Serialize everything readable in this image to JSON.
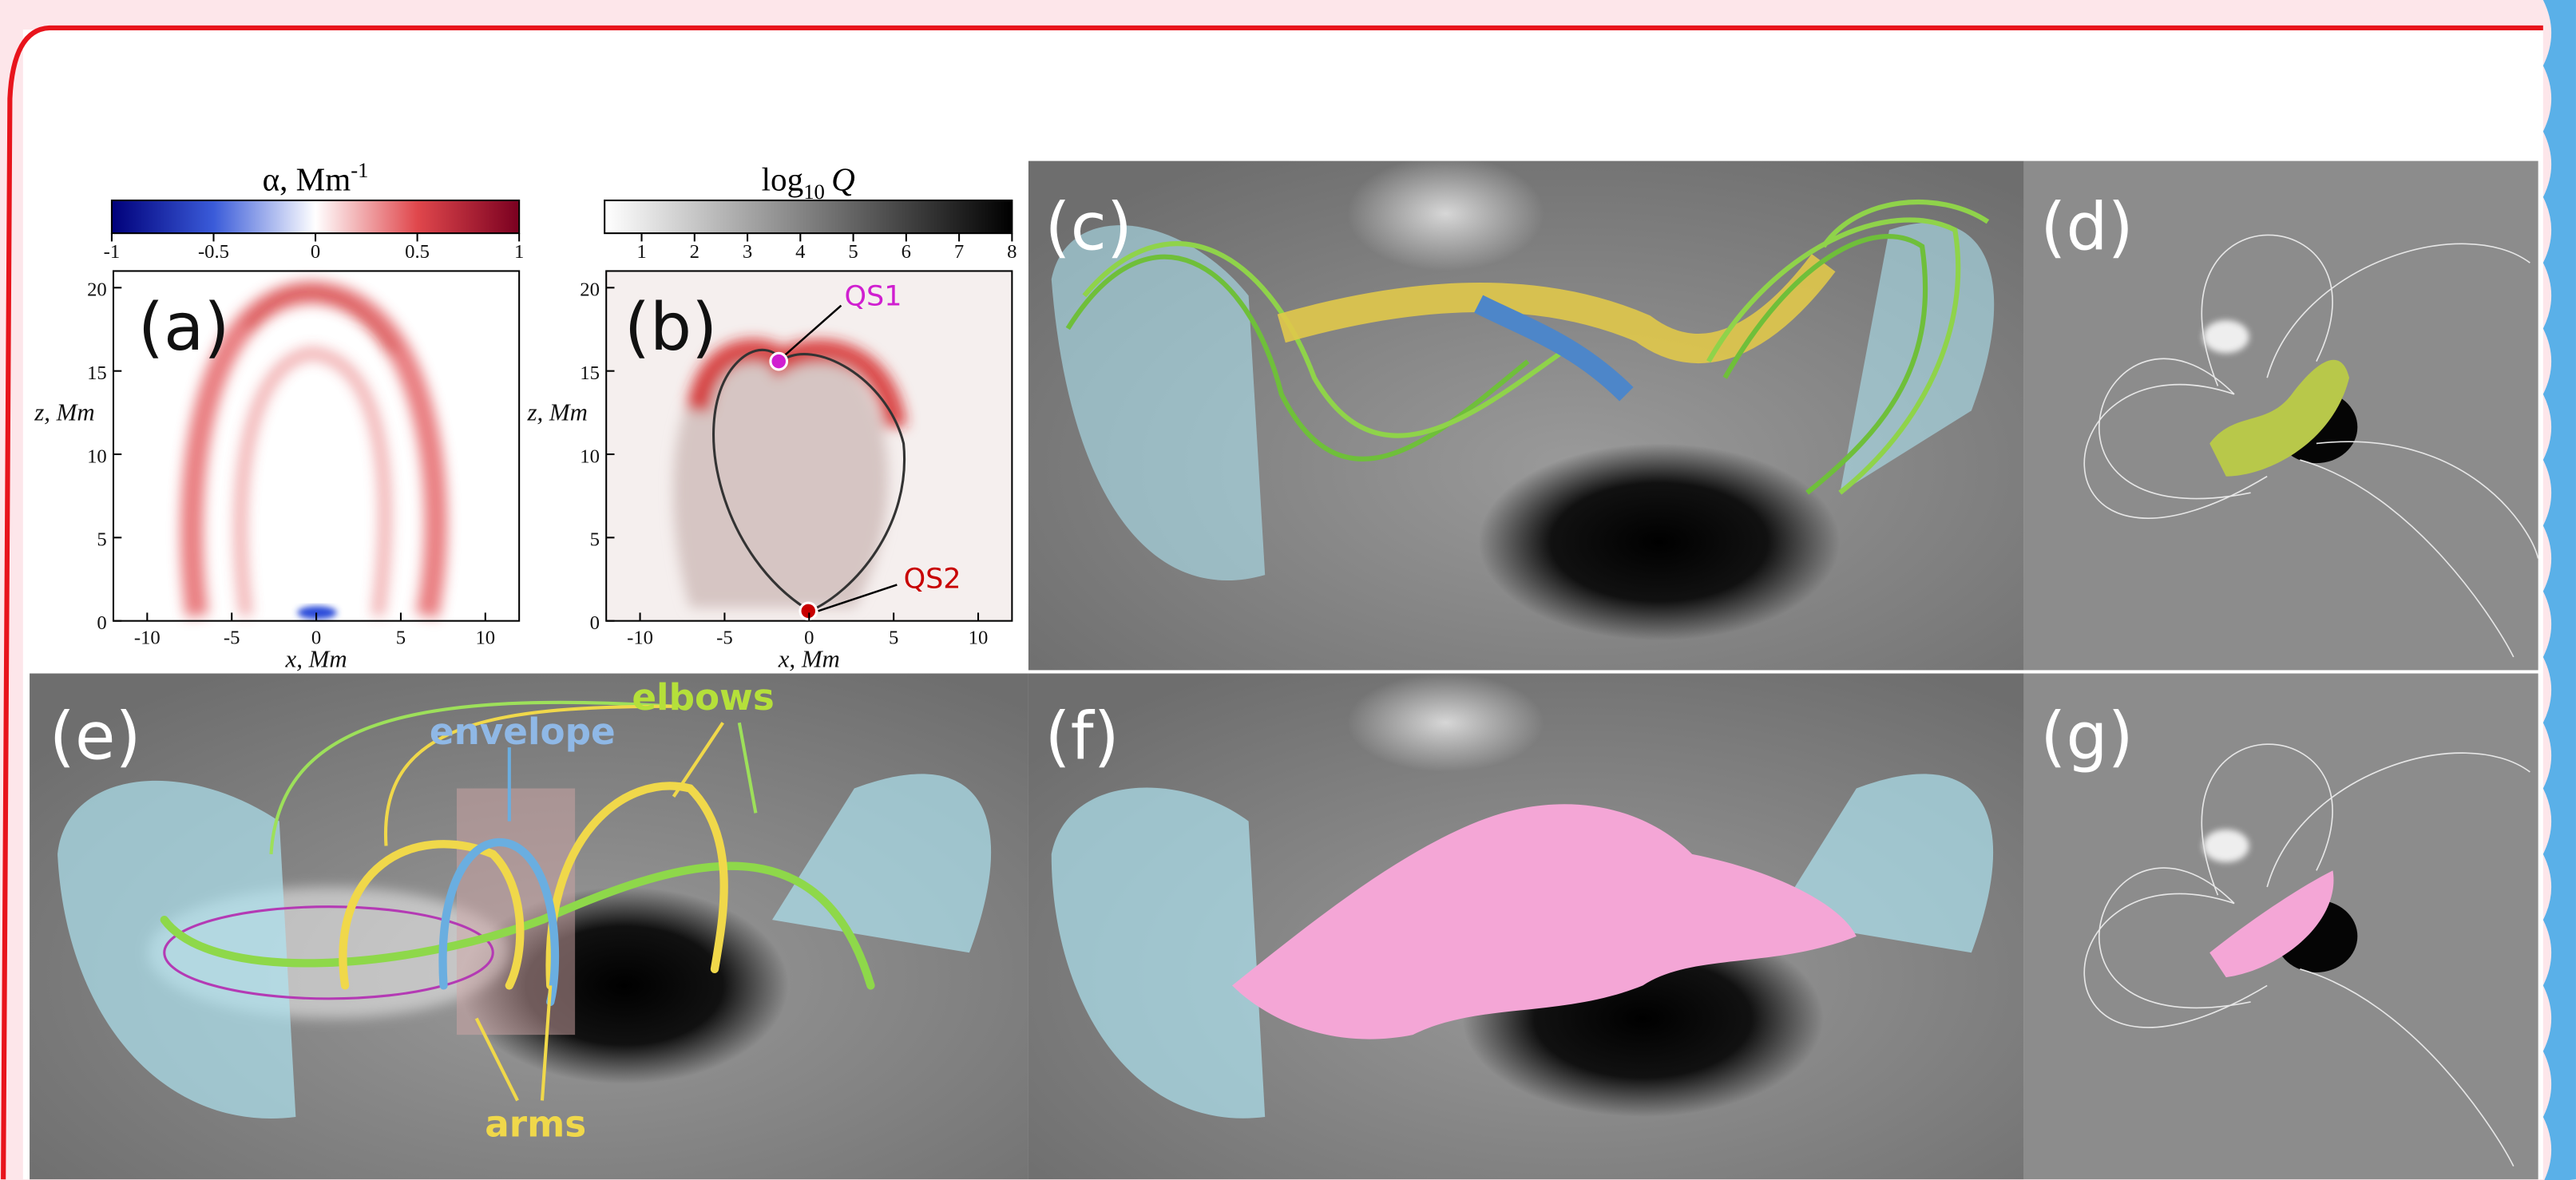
{
  "panel_labels": [
    "(a)",
    "(b)",
    "(c)",
    "(d)",
    "(e)",
    "(f)",
    "(g)"
  ],
  "colorbar_alpha": {
    "title": "α, Mm",
    "superscript": "-1",
    "ticks": [
      -1,
      -0.5,
      0,
      0.5,
      1
    ],
    "lim": [
      -1,
      1
    ]
  },
  "colorbar_q": {
    "title_base": "log",
    "subscript": "10",
    "title_var": "Q",
    "ticks": [
      1,
      2,
      3,
      4,
      5,
      6,
      7,
      8
    ],
    "lim": [
      0.3,
      8
    ]
  },
  "plot_axes": {
    "x_label": "x, Mm",
    "z_label": "z, Mm",
    "xticks": [
      -10,
      -5,
      0,
      5,
      10
    ],
    "zticks": [
      0,
      5,
      10,
      15,
      20
    ],
    "xlim": [
      -12,
      12
    ],
    "zlim": [
      0,
      21
    ]
  },
  "annotations": {
    "qs1": "QS1",
    "qs2": "QS2",
    "elbows": "elbows",
    "envelope": "envelope",
    "arms": "arms"
  }
}
